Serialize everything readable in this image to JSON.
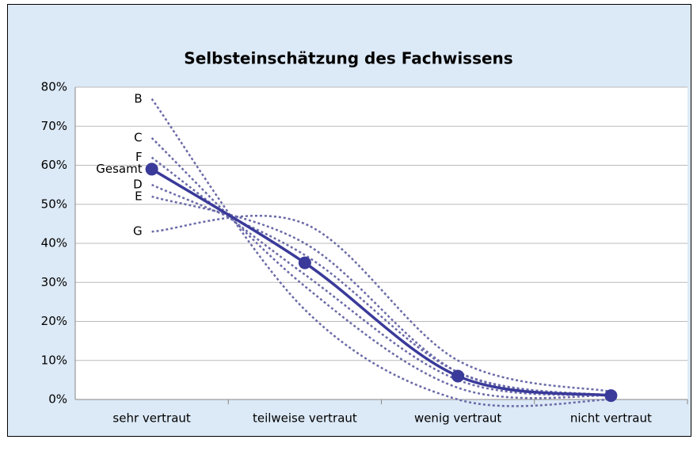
{
  "chart_data": {
    "type": "line",
    "title": "Selbsteinschätzung des Fachwissens",
    "categories": [
      "sehr vertraut",
      "teilweise vertraut",
      "wenig vertraut",
      "nicht vertraut"
    ],
    "series": [
      {
        "name": "B",
        "color": "#6a6aa8",
        "dashed": true,
        "values": [
          77,
          23,
          0,
          0
        ]
      },
      {
        "name": "C",
        "color": "#6a6aa8",
        "dashed": true,
        "values": [
          67,
          29,
          3,
          1
        ]
      },
      {
        "name": "F",
        "color": "#6a6aa8",
        "dashed": true,
        "values": [
          62,
          32,
          5,
          1
        ]
      },
      {
        "name": "D",
        "color": "#6a6aa8",
        "dashed": true,
        "values": [
          55,
          37,
          7,
          1
        ]
      },
      {
        "name": "E",
        "color": "#6a6aa8",
        "dashed": true,
        "values": [
          52,
          40,
          7,
          1
        ]
      },
      {
        "name": "G",
        "color": "#6a6aa8",
        "dashed": true,
        "values": [
          43,
          45,
          10,
          2
        ]
      },
      {
        "name": "Gesamt",
        "color": "#3a3a9a",
        "dashed": false,
        "markers": true,
        "values": [
          59,
          35,
          6,
          1
        ]
      }
    ],
    "ylim": [
      0,
      80
    ],
    "yticks": [
      {
        "value": 0,
        "label": "0%"
      },
      {
        "value": 10,
        "label": "10%"
      },
      {
        "value": 20,
        "label": "20%"
      },
      {
        "value": 30,
        "label": "30%"
      },
      {
        "value": 40,
        "label": "40%"
      },
      {
        "value": 50,
        "label": "50%"
      },
      {
        "value": 60,
        "label": "60%"
      },
      {
        "value": 70,
        "label": "70%"
      },
      {
        "value": 80,
        "label": "80%"
      }
    ],
    "grid": true
  }
}
